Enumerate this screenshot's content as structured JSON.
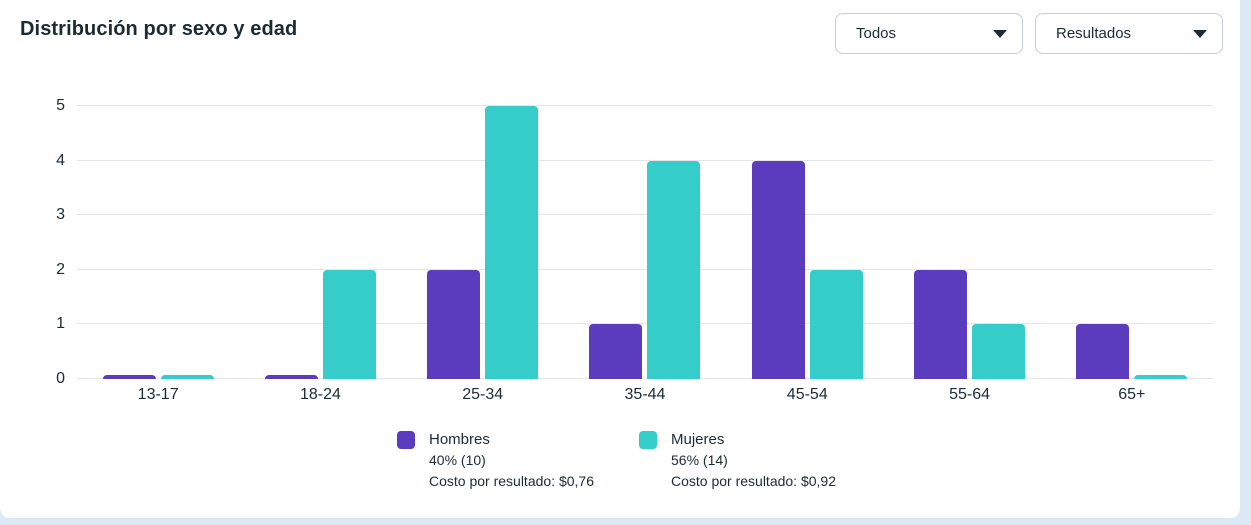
{
  "header": {
    "title": "Distribución por sexo y edad",
    "dropdowns": [
      {
        "label": "Todos",
        "icon": "chevron-down-icon"
      },
      {
        "label": "Resultados",
        "icon": "chevron-down-icon"
      }
    ]
  },
  "chart_data": {
    "type": "bar",
    "title": "Distribución por sexo y edad",
    "categories": [
      "13-17",
      "18-24",
      "25-34",
      "35-44",
      "45-54",
      "55-64",
      "65+"
    ],
    "series": [
      {
        "name": "Hombres",
        "color": "#5b3cbe",
        "values": [
          0,
          0,
          2,
          1,
          4,
          2,
          1
        ]
      },
      {
        "name": "Mujeres",
        "color": "#34cdc9",
        "values": [
          0,
          2,
          5,
          4,
          2,
          1,
          0
        ]
      }
    ],
    "ylim": [
      0,
      5
    ],
    "yticks": [
      0,
      1,
      2,
      3,
      4,
      5
    ],
    "grid": true,
    "legend_position": "bottom"
  },
  "legend": {
    "items": [
      {
        "name": "Hombres",
        "share": "40% (10)",
        "cost": "Costo por resultado: $0,76",
        "color": "#5b3cbe"
      },
      {
        "name": "Mujeres",
        "share": "56% (14)",
        "cost": "Costo por resultado: $0,92",
        "color": "#34cdc9"
      }
    ]
  },
  "colors": {
    "hombres": "#5b3cbe",
    "mujeres": "#34cdc9",
    "card_background": "#ffffff",
    "page_background": "#dce9f5",
    "gridline": "#e4e6eb",
    "text": "#1c2b33"
  }
}
